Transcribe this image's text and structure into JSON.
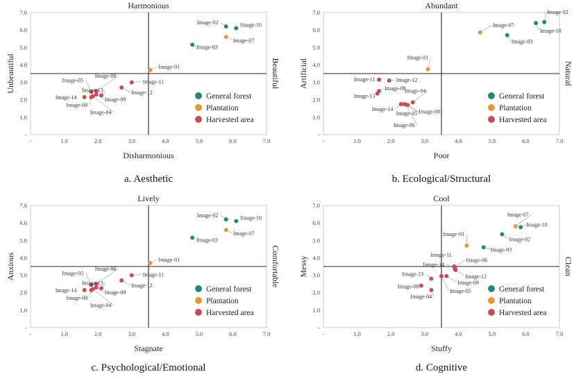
{
  "colors": {
    "general_forest": "#1f8a7a",
    "plantation": "#e8962e",
    "harvested_area": "#c44e55",
    "axis": "#222222",
    "frame": "#c8c8c8",
    "leader": "#9a9a9a"
  },
  "legend": {
    "general_forest": "General forest",
    "plantation": "Plantation",
    "harvested_area": "Harvested area"
  },
  "chart_data": [
    {
      "type": "scatter",
      "caption": "a.  Aesthetic",
      "top_label": "Harmonious",
      "bottom_label": "Disharmonious",
      "left_label": "Unbeautiful",
      "right_label": "Beautiful",
      "xlim": [
        0,
        7
      ],
      "ylim": [
        0,
        7
      ],
      "x_ticks": [
        "-",
        "1.0",
        "2.0",
        "3.0",
        "4.0",
        "5.0",
        "6.0",
        "7.0"
      ],
      "y_ticks": [
        "-",
        "1.0",
        "2.0",
        "3.0",
        "4.0",
        "5.0",
        "6.0",
        "7.0"
      ],
      "cross": [
        3.5,
        3.5
      ],
      "points": [
        {
          "label": "Image-02",
          "group": "general_forest",
          "x": 5.8,
          "y": 6.2
        },
        {
          "label": "Image-10",
          "group": "general_forest",
          "x": 6.1,
          "y": 6.1
        },
        {
          "label": "Image-03",
          "group": "general_forest",
          "x": 4.8,
          "y": 5.15
        },
        {
          "label": "Image-07",
          "group": "plantation",
          "x": 5.8,
          "y": 5.6
        },
        {
          "label": "Image-01",
          "group": "plantation",
          "x": 3.55,
          "y": 3.7
        },
        {
          "label": "Image-11",
          "group": "harvested_area",
          "x": 3.0,
          "y": 3.0
        },
        {
          "label": "Image-12",
          "group": "harvested_area",
          "x": 2.7,
          "y": 2.7
        },
        {
          "label": "Image-05",
          "group": "harvested_area",
          "x": 1.8,
          "y": 2.45
        },
        {
          "label": "Image-06",
          "group": "harvested_area",
          "x": 1.95,
          "y": 2.5
        },
        {
          "label": "Image-13",
          "group": "harvested_area",
          "x": 2.1,
          "y": 2.25
        },
        {
          "label": "Image-14",
          "group": "harvested_area",
          "x": 1.6,
          "y": 2.15
        },
        {
          "label": "Image-09",
          "group": "harvested_area",
          "x": 1.95,
          "y": 2.3
        },
        {
          "label": "Image-08",
          "group": "harvested_area",
          "x": 1.8,
          "y": 2.15
        },
        {
          "label": "Image-04",
          "group": "harvested_area",
          "x": 1.85,
          "y": 2.2
        }
      ]
    },
    {
      "type": "scatter",
      "caption": "b.  Ecological/Structural",
      "top_label": "Abundant",
      "bottom_label": "Poor",
      "left_label": "Artificial",
      "right_label": "Natural",
      "xlim": [
        0,
        7
      ],
      "ylim": [
        0,
        7
      ],
      "x_ticks": [
        "-",
        "1.0",
        "2.0",
        "3.0",
        "4.0",
        "5.0",
        "6.0",
        "7.0"
      ],
      "y_ticks": [
        "-",
        "1.0",
        "2.0",
        "3.0",
        "4.0",
        "5.0",
        "6.0",
        "7.0"
      ],
      "cross": [
        3.5,
        3.5
      ],
      "points": [
        {
          "label": "Image-02",
          "group": "general_forest",
          "x": 6.55,
          "y": 6.45
        },
        {
          "label": "Image-10",
          "group": "general_forest",
          "x": 6.3,
          "y": 6.4
        },
        {
          "label": "Image-03",
          "group": "general_forest",
          "x": 5.45,
          "y": 5.7
        },
        {
          "label": "Image-07",
          "group": "plantation",
          "x": 4.65,
          "y": 5.85
        },
        {
          "label": "Image-01",
          "group": "plantation",
          "x": 3.1,
          "y": 3.75
        },
        {
          "label": "Image-11",
          "group": "harvested_area",
          "x": 1.65,
          "y": 3.15
        },
        {
          "label": "Image-12",
          "group": "harvested_area",
          "x": 1.95,
          "y": 3.1
        },
        {
          "label": "Image-08",
          "group": "harvested_area",
          "x": 1.65,
          "y": 2.5
        },
        {
          "label": "Image-13",
          "group": "harvested_area",
          "x": 1.6,
          "y": 2.35
        },
        {
          "label": "Image-04",
          "group": "harvested_area",
          "x": 2.65,
          "y": 1.85
        },
        {
          "label": "Image-14",
          "group": "harvested_area",
          "x": 2.3,
          "y": 1.75
        },
        {
          "label": "Image-05",
          "group": "harvested_area",
          "x": 2.4,
          "y": 1.75
        },
        {
          "label": "Image-09",
          "group": "harvested_area",
          "x": 2.5,
          "y": 1.7
        },
        {
          "label": "Image-06",
          "group": "harvested_area",
          "x": 2.45,
          "y": 1.72
        }
      ]
    },
    {
      "type": "scatter",
      "caption": "c.  Psychological/Emotional",
      "top_label": "Lively",
      "bottom_label": "Stagnate",
      "left_label": "Anxious",
      "right_label": "Comfortable",
      "xlim": [
        0,
        7
      ],
      "ylim": [
        0,
        7
      ],
      "x_ticks": [
        "-",
        "1.0",
        "2.0",
        "3.0",
        "4.0",
        "5.0",
        "6.0",
        "7.0"
      ],
      "y_ticks": [
        "-",
        "1.0",
        "2.0",
        "3.0",
        "4.0",
        "5.0",
        "6.0",
        "7.0"
      ],
      "cross": [
        3.5,
        3.5
      ],
      "points": [
        {
          "label": "Image-02",
          "group": "general_forest",
          "x": 5.8,
          "y": 6.2
        },
        {
          "label": "Image-10",
          "group": "general_forest",
          "x": 6.1,
          "y": 6.1
        },
        {
          "label": "Image-03",
          "group": "general_forest",
          "x": 4.8,
          "y": 5.15
        },
        {
          "label": "Image-07",
          "group": "plantation",
          "x": 5.8,
          "y": 5.6
        },
        {
          "label": "Image-01",
          "group": "plantation",
          "x": 3.55,
          "y": 3.7
        },
        {
          "label": "Image-11",
          "group": "harvested_area",
          "x": 3.0,
          "y": 3.0
        },
        {
          "label": "Image-12",
          "group": "harvested_area",
          "x": 2.7,
          "y": 2.7
        },
        {
          "label": "Image-05",
          "group": "harvested_area",
          "x": 1.8,
          "y": 2.45
        },
        {
          "label": "Image-06",
          "group": "harvested_area",
          "x": 1.95,
          "y": 2.5
        },
        {
          "label": "Image-13",
          "group": "harvested_area",
          "x": 2.1,
          "y": 2.25
        },
        {
          "label": "Image-14",
          "group": "harvested_area",
          "x": 1.6,
          "y": 2.15
        },
        {
          "label": "Image-09",
          "group": "harvested_area",
          "x": 1.95,
          "y": 2.3
        },
        {
          "label": "Image-08",
          "group": "harvested_area",
          "x": 1.8,
          "y": 2.15
        },
        {
          "label": "Image-04",
          "group": "harvested_area",
          "x": 1.85,
          "y": 2.2
        }
      ]
    },
    {
      "type": "scatter",
      "caption": "d.  Cognitive",
      "top_label": "Cool",
      "bottom_label": "Stuffy",
      "left_label": "Messy",
      "right_label": "Clean",
      "xlim": [
        0,
        7
      ],
      "ylim": [
        0,
        7
      ],
      "x_ticks": [
        "-",
        "1.0",
        "2.0",
        "3.0",
        "4.0",
        "5.0",
        "6.0",
        "7.0"
      ],
      "y_ticks": [
        "-",
        "1.0",
        "2.0",
        "3.0",
        "4.0",
        "5.0",
        "6.0",
        "7.0"
      ],
      "cross": [
        3.5,
        3.5
      ],
      "points": [
        {
          "label": "Image-07",
          "group": "plantation",
          "x": 5.7,
          "y": 5.8
        },
        {
          "label": "Image-10",
          "group": "general_forest",
          "x": 5.85,
          "y": 5.75
        },
        {
          "label": "Image-02",
          "group": "general_forest",
          "x": 5.3,
          "y": 5.35
        },
        {
          "label": "Image-01",
          "group": "plantation",
          "x": 4.25,
          "y": 4.7
        },
        {
          "label": "Image-03",
          "group": "general_forest",
          "x": 4.75,
          "y": 4.6
        },
        {
          "label": "Image-06",
          "group": "harvested_area",
          "x": 3.9,
          "y": 3.45
        },
        {
          "label": "Image-11",
          "group": "harvested_area",
          "x": 3.88,
          "y": 3.5
        },
        {
          "label": "Image-14",
          "group": "harvested_area",
          "x": 3.9,
          "y": 3.35
        },
        {
          "label": "Image-12",
          "group": "harvested_area",
          "x": 3.92,
          "y": 3.3
        },
        {
          "label": "Image-13",
          "group": "harvested_area",
          "x": 3.2,
          "y": 2.8
        },
        {
          "label": "Image-09",
          "group": "harvested_area",
          "x": 3.65,
          "y": 2.95
        },
        {
          "label": "Image-05",
          "group": "harvested_area",
          "x": 3.5,
          "y": 2.95
        },
        {
          "label": "Image-08",
          "group": "harvested_area",
          "x": 2.9,
          "y": 2.4
        },
        {
          "label": "Image-04",
          "group": "harvested_area",
          "x": 3.2,
          "y": 2.15
        }
      ]
    }
  ]
}
